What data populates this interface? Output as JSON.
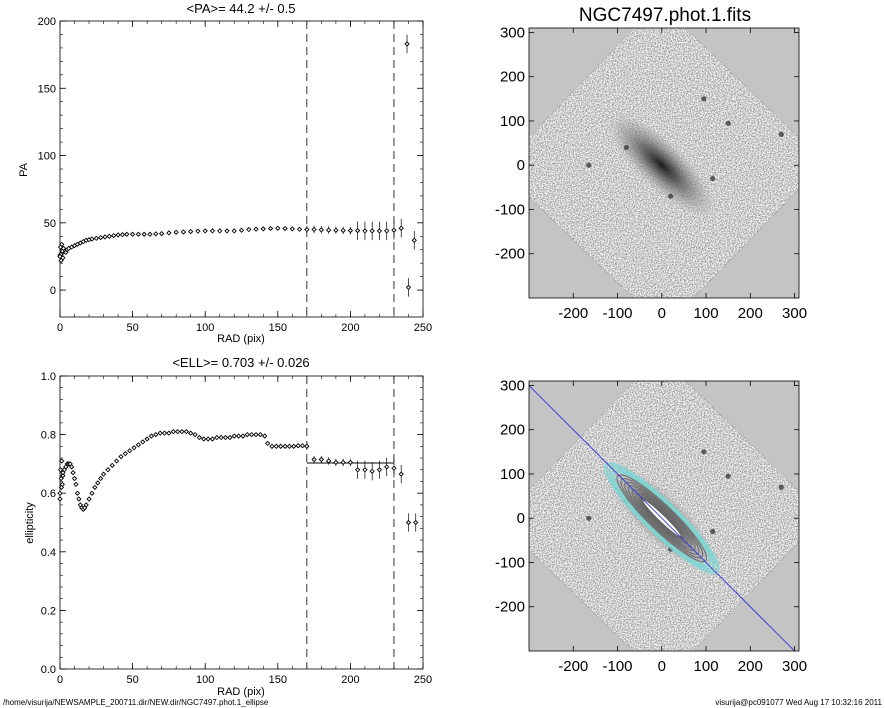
{
  "footer": {
    "left": "/home/visurija/NEWSAMPLE_200711.dir/NEW.dir/NGC7497.phot.1_ellipse",
    "right": "visurija@pc091077  Wed Aug 17 10:32:16 2011"
  },
  "chart_data": [
    {
      "type": "scatter",
      "title": "<PA>=  44.2 +/-   0.5",
      "xlabel": "RAD (pix)",
      "ylabel": "PA",
      "xlim": [
        0,
        250
      ],
      "ylim": [
        -20,
        200
      ],
      "xticks": [
        0,
        50,
        100,
        150,
        200,
        250
      ],
      "yticks": [
        0,
        50,
        100,
        150,
        200
      ],
      "vlines": [
        170,
        230
      ],
      "points": [
        [
          0,
          26
        ],
        [
          1,
          27
        ],
        [
          2,
          28
        ],
        [
          3,
          29
        ],
        [
          4,
          28
        ],
        [
          5,
          30
        ],
        [
          6,
          31
        ],
        [
          8,
          32
        ],
        [
          10,
          33
        ],
        [
          12,
          34
        ],
        [
          14,
          35
        ],
        [
          16,
          36
        ],
        [
          18,
          37
        ],
        [
          20,
          37.5
        ],
        [
          22,
          38
        ],
        [
          25,
          38.5
        ],
        [
          28,
          39
        ],
        [
          31,
          39.5
        ],
        [
          34,
          40
        ],
        [
          37,
          40.5
        ],
        [
          40,
          41
        ],
        [
          43,
          41.2
        ],
        [
          46,
          41.5
        ],
        [
          50,
          41.5
        ],
        [
          54,
          41.5
        ],
        [
          58,
          41.5
        ],
        [
          62,
          41.5
        ],
        [
          66,
          41.8
        ],
        [
          70,
          42
        ],
        [
          75,
          42.5
        ],
        [
          80,
          43
        ],
        [
          85,
          43.2
        ],
        [
          90,
          43.5
        ],
        [
          95,
          43.8
        ],
        [
          100,
          44
        ],
        [
          105,
          44
        ],
        [
          110,
          44
        ],
        [
          115,
          44
        ],
        [
          120,
          44
        ],
        [
          125,
          44.5
        ],
        [
          130,
          45
        ],
        [
          135,
          45.3
        ],
        [
          140,
          45.5
        ],
        [
          145,
          45.8
        ],
        [
          150,
          46
        ],
        [
          155,
          45.8
        ],
        [
          160,
          45.5
        ],
        [
          165,
          45.2
        ],
        [
          170,
          45
        ],
        [
          175,
          45
        ],
        [
          180,
          44.8
        ],
        [
          185,
          44.6
        ],
        [
          190,
          44.5
        ],
        [
          195,
          44.3
        ],
        [
          200,
          44.2
        ],
        [
          205,
          44.2
        ],
        [
          210,
          44
        ],
        [
          215,
          44
        ],
        [
          220,
          44
        ],
        [
          225,
          44
        ],
        [
          230,
          44.5
        ],
        [
          235,
          46
        ],
        [
          239,
          183
        ],
        [
          240,
          2
        ],
        [
          244,
          37
        ]
      ],
      "extra_y": [
        25,
        32,
        22,
        34,
        29,
        24,
        31
      ]
    },
    {
      "type": "scatter",
      "title": "<ELL>= 0.703 +/-  0.026",
      "xlabel": "RAD (pix)",
      "ylabel": "ellipticity",
      "xlim": [
        0,
        250
      ],
      "ylim": [
        0.0,
        1.0
      ],
      "xticks": [
        0,
        50,
        100,
        150,
        200,
        250
      ],
      "yticks": [
        0.0,
        0.2,
        0.4,
        0.6,
        0.8,
        1.0
      ],
      "ytick_labels": [
        "0.0",
        "0.2",
        "0.4",
        "0.6",
        "0.8",
        "1.0"
      ],
      "vlines": [
        170,
        230
      ],
      "hline": {
        "y": 0.703,
        "x": [
          170,
          230
        ]
      },
      "points": [
        [
          0,
          0.58
        ],
        [
          1,
          0.62
        ],
        [
          2,
          0.66
        ],
        [
          3,
          0.68
        ],
        [
          4,
          0.69
        ],
        [
          5,
          0.7
        ],
        [
          6,
          0.7
        ],
        [
          7,
          0.7
        ],
        [
          8,
          0.69
        ],
        [
          9,
          0.67
        ],
        [
          10,
          0.65
        ],
        [
          11,
          0.63
        ],
        [
          12,
          0.6
        ],
        [
          13,
          0.58
        ],
        [
          14,
          0.56
        ],
        [
          15,
          0.55
        ],
        [
          16,
          0.545
        ],
        [
          17,
          0.55
        ],
        [
          18,
          0.56
        ],
        [
          20,
          0.58
        ],
        [
          22,
          0.6
        ],
        [
          24,
          0.62
        ],
        [
          26,
          0.635
        ],
        [
          28,
          0.65
        ],
        [
          30,
          0.665
        ],
        [
          33,
          0.68
        ],
        [
          36,
          0.695
        ],
        [
          39,
          0.71
        ],
        [
          42,
          0.725
        ],
        [
          45,
          0.735
        ],
        [
          48,
          0.745
        ],
        [
          51,
          0.755
        ],
        [
          54,
          0.765
        ],
        [
          57,
          0.775
        ],
        [
          60,
          0.785
        ],
        [
          63,
          0.795
        ],
        [
          66,
          0.8
        ],
        [
          69,
          0.805
        ],
        [
          72,
          0.805
        ],
        [
          75,
          0.805
        ],
        [
          78,
          0.81
        ],
        [
          81,
          0.81
        ],
        [
          84,
          0.81
        ],
        [
          87,
          0.81
        ],
        [
          90,
          0.805
        ],
        [
          93,
          0.8
        ],
        [
          96,
          0.79
        ],
        [
          99,
          0.785
        ],
        [
          102,
          0.785
        ],
        [
          105,
          0.785
        ],
        [
          108,
          0.79
        ],
        [
          111,
          0.79
        ],
        [
          114,
          0.79
        ],
        [
          117,
          0.79
        ],
        [
          120,
          0.795
        ],
        [
          123,
          0.795
        ],
        [
          126,
          0.795
        ],
        [
          129,
          0.8
        ],
        [
          132,
          0.8
        ],
        [
          135,
          0.8
        ],
        [
          138,
          0.8
        ],
        [
          141,
          0.795
        ],
        [
          143,
          0.77
        ],
        [
          146,
          0.76
        ],
        [
          149,
          0.76
        ],
        [
          152,
          0.76
        ],
        [
          155,
          0.76
        ],
        [
          158,
          0.76
        ],
        [
          161,
          0.76
        ],
        [
          164,
          0.762
        ],
        [
          167,
          0.762
        ],
        [
          170,
          0.76
        ],
        [
          175,
          0.715
        ],
        [
          180,
          0.715
        ],
        [
          185,
          0.71
        ],
        [
          190,
          0.705
        ],
        [
          195,
          0.705
        ],
        [
          200,
          0.705
        ],
        [
          205,
          0.68
        ],
        [
          210,
          0.68
        ],
        [
          215,
          0.675
        ],
        [
          220,
          0.68
        ],
        [
          225,
          0.69
        ],
        [
          230,
          0.685
        ],
        [
          235,
          0.665
        ],
        [
          240,
          0.5
        ],
        [
          245,
          0.5
        ]
      ],
      "extra_y": [
        0.6,
        0.68,
        0.65,
        0.71,
        0.63,
        0.67
      ]
    }
  ],
  "images": [
    {
      "title": "NGC7497.phot.1.fits",
      "xlim": [
        -300,
        310
      ],
      "ylim": [
        -300,
        310
      ],
      "xticks": [
        -200,
        -100,
        0,
        100,
        200,
        300
      ],
      "yticks": [
        -200,
        -100,
        0,
        100,
        200,
        300
      ],
      "overlay": false
    },
    {
      "title": "",
      "xlim": [
        -300,
        310
      ],
      "ylim": [
        -300,
        310
      ],
      "xticks": [
        -200,
        -100,
        0,
        100,
        200,
        300
      ],
      "yticks": [
        -200,
        -100,
        0,
        100,
        200,
        300
      ],
      "overlay": true,
      "major_axis_pa_deg": 44.2,
      "line_color": "#2f3fd6",
      "contour_color_outer": "#7fd6d3",
      "contour_color_inner": "#6c6c6c"
    }
  ]
}
